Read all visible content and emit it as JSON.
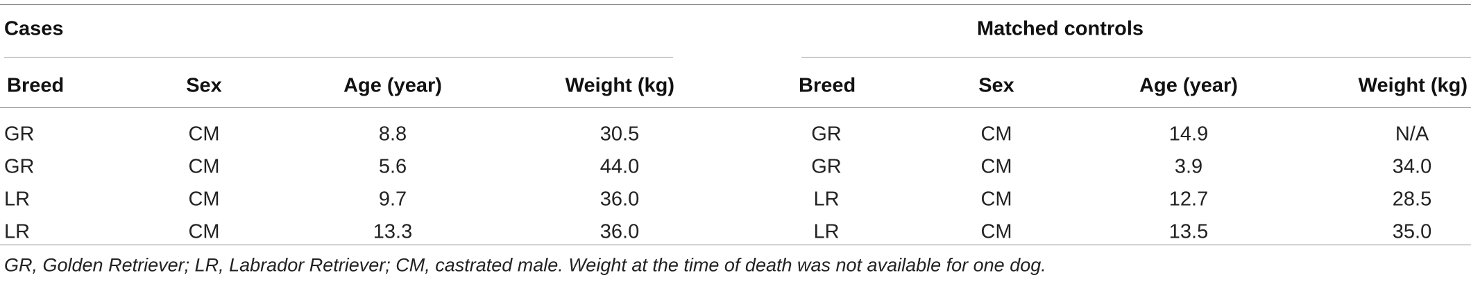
{
  "groups": {
    "cases": "Cases",
    "controls": "Matched controls"
  },
  "columns": {
    "cases": [
      "Breed",
      "Sex",
      "Age (year)",
      "Weight (kg)"
    ],
    "controls": [
      "Breed",
      "Sex",
      "Age (year)",
      "Weight (kg)"
    ]
  },
  "rows": [
    {
      "cases": [
        "GR",
        "CM",
        "8.8",
        "30.5"
      ],
      "controls": [
        "GR",
        "CM",
        "14.9",
        "N/A"
      ]
    },
    {
      "cases": [
        "GR",
        "CM",
        "5.6",
        "44.0"
      ],
      "controls": [
        "GR",
        "CM",
        "3.9",
        "34.0"
      ]
    },
    {
      "cases": [
        "LR",
        "CM",
        "9.7",
        "36.0"
      ],
      "controls": [
        "LR",
        "CM",
        "12.7",
        "28.5"
      ]
    },
    {
      "cases": [
        "LR",
        "CM",
        "13.3",
        "36.0"
      ],
      "controls": [
        "LR",
        "CM",
        "13.5",
        "35.0"
      ]
    }
  ],
  "footnote": "GR, Golden Retriever; LR, Labrador Retriever; CM, castrated male. Weight at the time of death was not available for one dog."
}
